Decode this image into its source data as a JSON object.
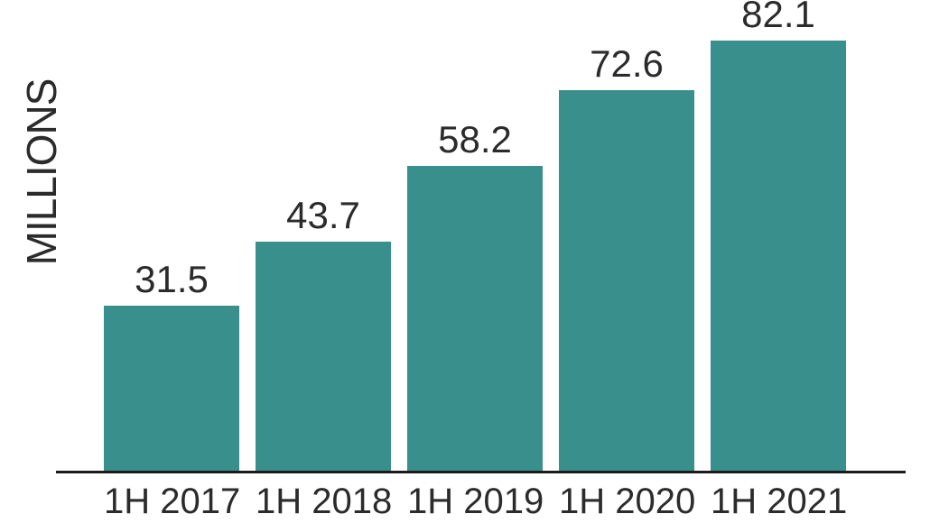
{
  "chart_data": {
    "type": "bar",
    "title": "",
    "xlabel": "",
    "ylabel": "MILLIONS",
    "categories": [
      "1H 2017",
      "1H 2018",
      "1H 2019",
      "1H 2020",
      "1H 2021"
    ],
    "values": [
      31.5,
      43.7,
      58.2,
      72.6,
      82.1
    ],
    "value_labels": [
      "31.5",
      "43.7",
      "58.2",
      "72.6",
      "82.1"
    ],
    "ylim": [
      0,
      90
    ],
    "grid": false,
    "legend": "none",
    "bar_color": "#398f8b",
    "text_color": "#2b2b2b",
    "axis_color": "#1b1b1b",
    "background_color": "#ffffff"
  }
}
